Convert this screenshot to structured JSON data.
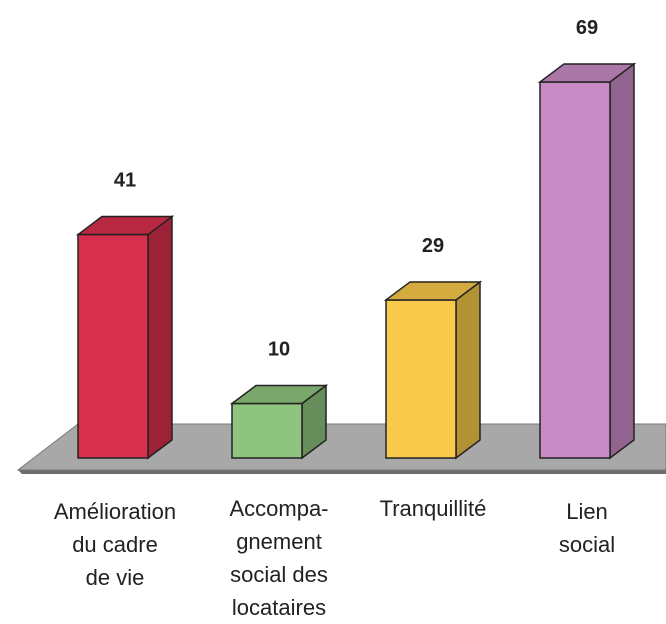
{
  "chart_data": {
    "type": "bar3d",
    "categories": [
      "Amélioration\ndu cadre\nde vie",
      "Accompa-\ngnement\nsocial des\nlocataires",
      "Tranquillité",
      "Lien\nsocial"
    ],
    "values": [
      41,
      10,
      29,
      69
    ],
    "colors": [
      "#d8304c",
      "#8fc47e",
      "#f8c94a",
      "#c98bc6"
    ]
  }
}
